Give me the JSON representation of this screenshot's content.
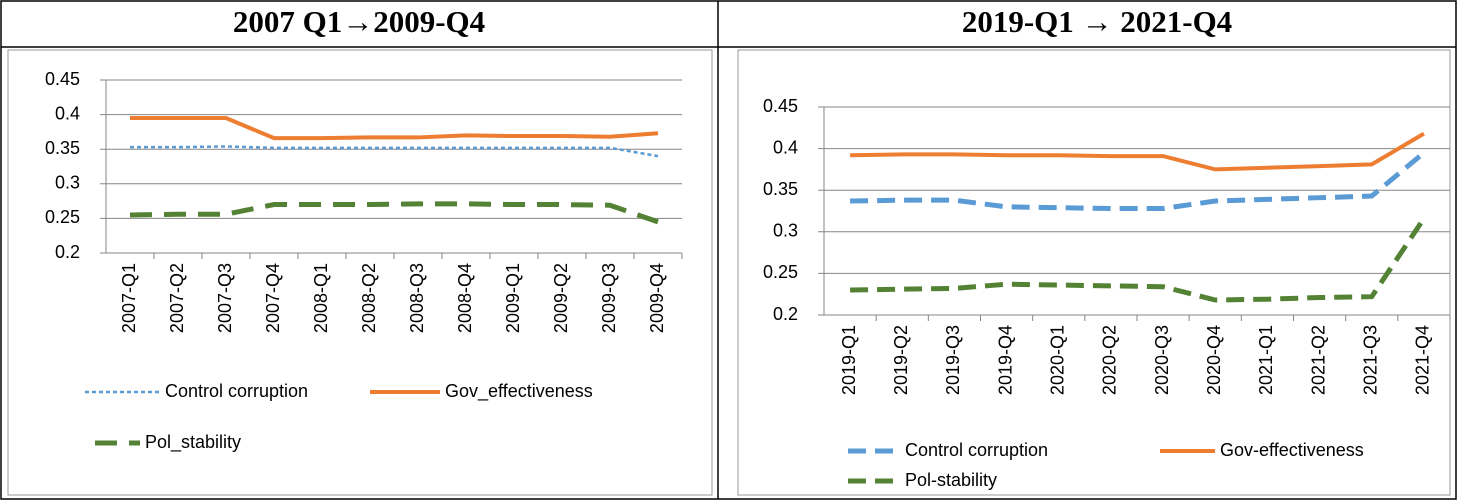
{
  "chart_data": [
    {
      "type": "line",
      "title": "2007 Q1→2009-Q4",
      "categories": [
        "2007-Q1",
        "2007-Q2",
        "2007-Q3",
        "2007-Q4",
        "2008-Q1",
        "2008-Q2",
        "2008-Q3",
        "2008-Q4",
        "2009-Q1",
        "2009-Q2",
        "2009-Q3",
        "2009-Q4"
      ],
      "ylim": [
        0.2,
        0.45
      ],
      "yticks": [
        0.2,
        0.25,
        0.3,
        0.35,
        0.4,
        0.45
      ],
      "grid": true,
      "series": [
        {
          "name": "Control corruption",
          "color": "#5b9bd5",
          "line_style": "dotted",
          "values": [
            0.353,
            0.353,
            0.354,
            0.352,
            0.352,
            0.352,
            0.352,
            0.352,
            0.352,
            0.352,
            0.352,
            0.34
          ]
        },
        {
          "name": "Gov_effectiveness",
          "color": "#ed7d31",
          "line_style": "solid",
          "values": [
            0.395,
            0.395,
            0.395,
            0.366,
            0.366,
            0.367,
            0.367,
            0.37,
            0.369,
            0.369,
            0.368,
            0.373
          ]
        },
        {
          "name": "Pol_stability",
          "color": "#548235",
          "line_style": "dashed",
          "values": [
            0.255,
            0.256,
            0.256,
            0.27,
            0.27,
            0.27,
            0.271,
            0.271,
            0.27,
            0.27,
            0.269,
            0.245
          ]
        }
      ]
    },
    {
      "type": "line",
      "title": "2019-Q1 → 2021-Q4",
      "categories": [
        "2019-Q1",
        "2019-Q2",
        "2019-Q3",
        "2019-Q4",
        "2020-Q1",
        "2020-Q2",
        "2020-Q3",
        "2020-Q4",
        "2021-Q1",
        "2021-Q2",
        "2021-Q3",
        "2021-Q4"
      ],
      "ylim": [
        0.2,
        0.45
      ],
      "yticks": [
        0.2,
        0.25,
        0.3,
        0.35,
        0.4,
        0.45
      ],
      "grid": true,
      "series": [
        {
          "name": "Control corruption",
          "color": "#5b9bd5",
          "line_style": "dashed",
          "values": [
            0.337,
            0.338,
            0.338,
            0.33,
            0.329,
            0.328,
            0.328,
            0.337,
            0.339,
            0.341,
            0.343,
            0.395
          ]
        },
        {
          "name": "Gov-effectiveness",
          "color": "#ed7d31",
          "line_style": "solid",
          "values": [
            0.392,
            0.393,
            0.393,
            0.392,
            0.392,
            0.391,
            0.391,
            0.375,
            0.377,
            0.379,
            0.381,
            0.418
          ]
        },
        {
          "name": "Pol-stability",
          "color": "#548235",
          "line_style": "dashed",
          "values": [
            0.23,
            0.231,
            0.232,
            0.237,
            0.236,
            0.235,
            0.234,
            0.218,
            0.219,
            0.221,
            0.222,
            0.316
          ]
        }
      ]
    }
  ]
}
